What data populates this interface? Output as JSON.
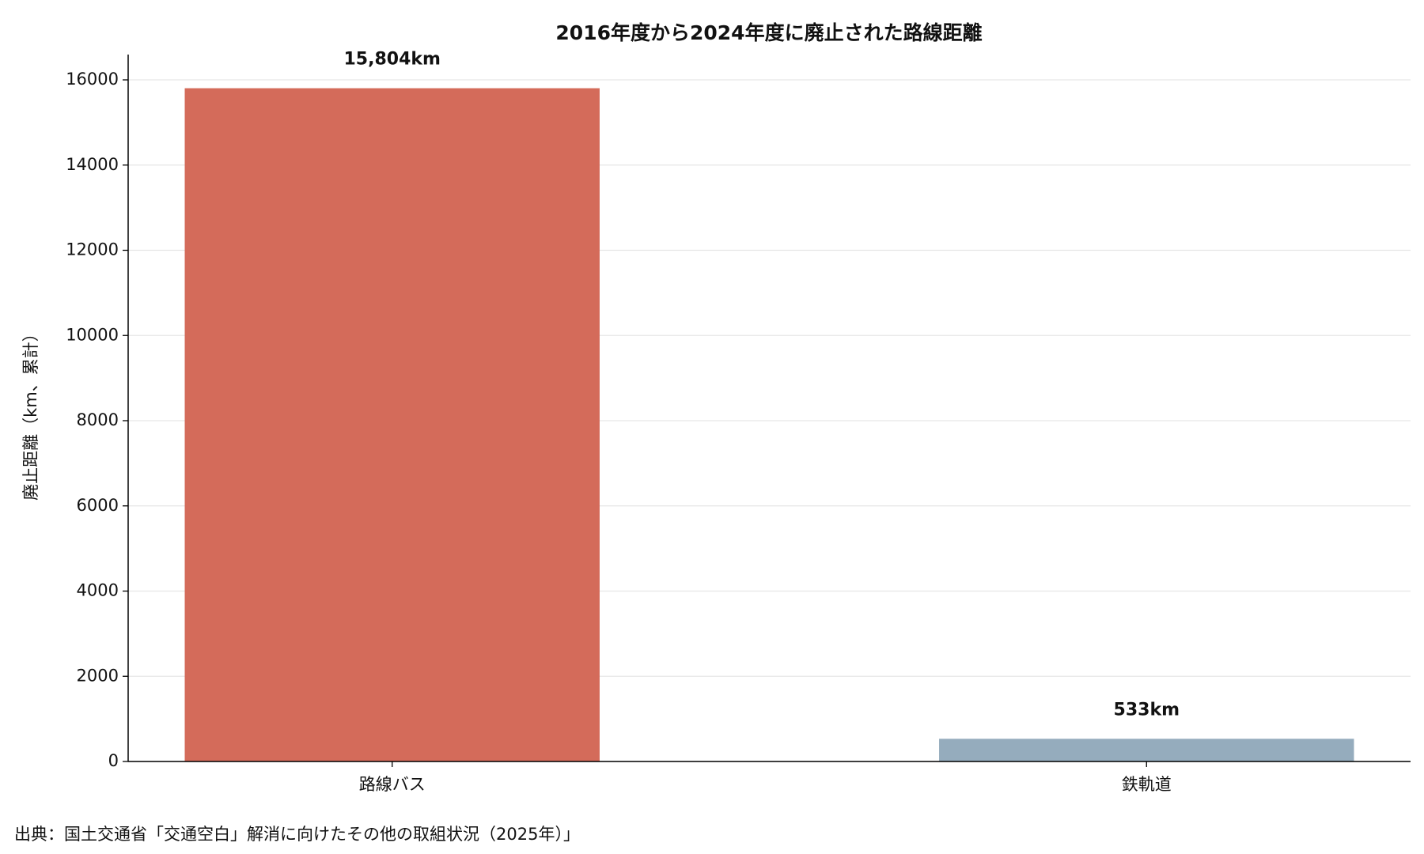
{
  "chart_data": {
    "type": "bar",
    "title": "2016年度から2024年度に廃止された路線距離",
    "ylabel": "廃止距離（km、累計）",
    "categories": [
      "路線バス",
      "鉄軌道"
    ],
    "values": [
      15804,
      533
    ],
    "value_labels": [
      "15,804km",
      "533km"
    ],
    "colors": [
      "#d46b5a",
      "#95acbd"
    ],
    "ylim": [
      0,
      16594
    ],
    "yticks": [
      0,
      2000,
      4000,
      6000,
      8000,
      10000,
      12000,
      14000,
      16000
    ],
    "grid": true,
    "source": "出典：国土交通省「交通空白」解消に向けたその他の取組状況（2025年）」"
  }
}
